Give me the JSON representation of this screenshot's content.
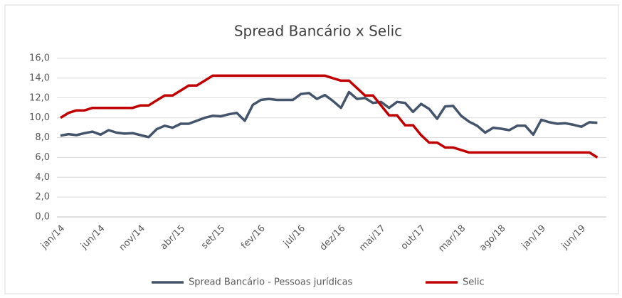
{
  "chart_data": {
    "type": "line",
    "title": "Spread Bancário x Selic",
    "categories": [
      "jan/14",
      null,
      null,
      null,
      null,
      "jun/14",
      null,
      null,
      null,
      null,
      "nov/14",
      null,
      null,
      null,
      null,
      "abr/15",
      null,
      null,
      null,
      null,
      "set/15",
      null,
      null,
      null,
      null,
      "fev/16",
      null,
      null,
      null,
      null,
      "jul/16",
      null,
      null,
      null,
      null,
      "dez/16",
      null,
      null,
      null,
      null,
      "mai/17",
      null,
      null,
      null,
      null,
      "out/17",
      null,
      null,
      null,
      null,
      "mar/18",
      null,
      null,
      null,
      null,
      "ago/18",
      null,
      null,
      null,
      null,
      "jan/19",
      null,
      null,
      null,
      null,
      "jun/19",
      null,
      null
    ],
    "series": [
      {
        "name": "Spread Bancário - Pessoas jurídicas",
        "color": "#44546a",
        "values": [
          8.2,
          8.35,
          8.25,
          8.45,
          8.6,
          8.3,
          8.75,
          8.5,
          8.4,
          8.45,
          8.25,
          8.05,
          8.85,
          9.2,
          9.0,
          9.4,
          9.4,
          9.7,
          10.0,
          10.2,
          10.15,
          10.35,
          10.5,
          9.7,
          11.3,
          11.8,
          11.9,
          11.8,
          11.8,
          11.8,
          12.4,
          12.5,
          11.9,
          12.3,
          11.7,
          11.0,
          12.6,
          11.9,
          12.0,
          11.5,
          11.6,
          11.0,
          11.6,
          11.5,
          10.6,
          11.4,
          10.9,
          9.9,
          11.15,
          11.2,
          10.2,
          9.6,
          9.2,
          8.5,
          9.0,
          8.9,
          8.75,
          9.2,
          9.2,
          8.3,
          9.8,
          9.55,
          9.4,
          9.45,
          9.3,
          9.1,
          9.55,
          9.5
        ]
      },
      {
        "name": "Selic",
        "color": "#c00000",
        "values": [
          10.0,
          10.5,
          10.75,
          10.75,
          11,
          11,
          11,
          11,
          11,
          11,
          11.25,
          11.25,
          11.75,
          12.25,
          12.25,
          12.75,
          13.25,
          13.25,
          13.75,
          14.25,
          14.25,
          14.25,
          14.25,
          14.25,
          14.25,
          14.25,
          14.25,
          14.25,
          14.25,
          14.25,
          14.25,
          14.25,
          14.25,
          14.25,
          14.0,
          13.75,
          13.75,
          13.0,
          12.25,
          12.25,
          11.25,
          10.25,
          10.25,
          9.25,
          9.25,
          8.25,
          7.5,
          7.5,
          7.0,
          7.0,
          6.75,
          6.5,
          6.5,
          6.5,
          6.5,
          6.5,
          6.5,
          6.5,
          6.5,
          6.5,
          6.5,
          6.5,
          6.5,
          6.5,
          6.5,
          6.5,
          6.5,
          6.0
        ]
      }
    ],
    "ylim": [
      0,
      16
    ],
    "yticks": [
      {
        "value": 0,
        "label": "0,0"
      },
      {
        "value": 2,
        "label": "2,0"
      },
      {
        "value": 4,
        "label": "4,0"
      },
      {
        "value": 6,
        "label": "6,0"
      },
      {
        "value": 8,
        "label": "8,0"
      },
      {
        "value": 10,
        "label": "10,0"
      },
      {
        "value": 12,
        "label": "12,0"
      },
      {
        "value": 14,
        "label": "14,0"
      },
      {
        "value": 16,
        "label": "16,0"
      }
    ],
    "grid": true
  }
}
